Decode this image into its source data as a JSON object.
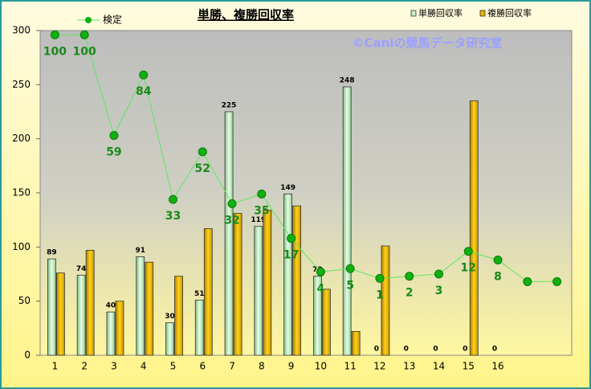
{
  "chart_data": {
    "type": "bar",
    "title": "単勝、複勝回収率",
    "annotation": "©Caniの競馬データ研究室",
    "categories": [
      "1",
      "2",
      "3",
      "4",
      "5",
      "6",
      "7",
      "8",
      "9",
      "10",
      "11",
      "12",
      "13",
      "14",
      "15",
      "16",
      null,
      null
    ],
    "series": [
      {
        "name": "単勝回収率",
        "color": "#c8ecc4",
        "values": [
          89,
          74,
          40,
          91,
          30,
          51,
          225,
          119,
          149,
          73,
          248,
          0,
          0,
          0,
          0,
          0,
          null,
          null
        ],
        "show_labels": true
      },
      {
        "name": "複勝回収率",
        "color": "#e8b400",
        "values": [
          76,
          97,
          50,
          86,
          73,
          117,
          131,
          134,
          138,
          61,
          22,
          101,
          0,
          0,
          235,
          0,
          null,
          null
        ],
        "show_labels": false
      },
      {
        "name": "検定",
        "type": "line",
        "color": "#00b000",
        "values": [
          296,
          296,
          203,
          259,
          144,
          188,
          140,
          149,
          108,
          77,
          80,
          71,
          73,
          75,
          96,
          88,
          68,
          68
        ],
        "point_labels": [
          "100",
          "100",
          "59",
          "84",
          "33",
          "52",
          "32",
          "35",
          "17",
          "4",
          "5",
          "1",
          "2",
          "3",
          "12",
          "8",
          null,
          null
        ]
      }
    ],
    "ylim": [
      0,
      300
    ],
    "yticks": [
      0,
      50,
      100,
      150,
      200,
      250,
      300
    ]
  }
}
